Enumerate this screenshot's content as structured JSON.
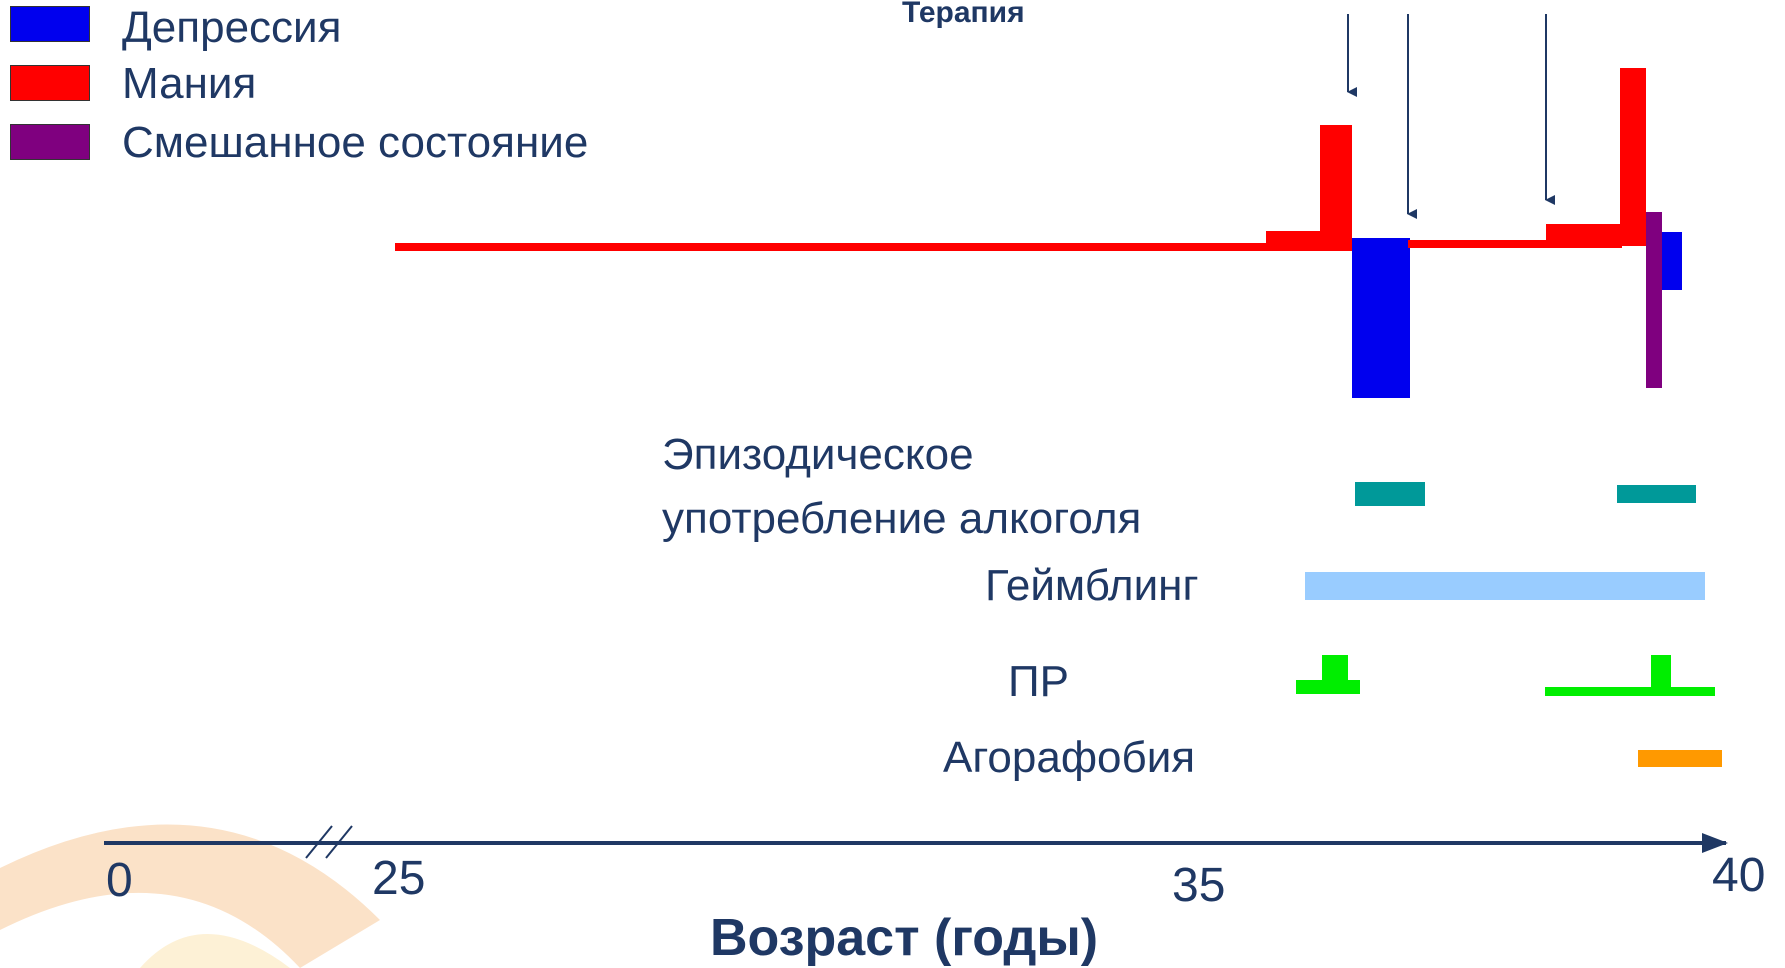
{
  "colors": {
    "depression": "#0000ee",
    "mania": "#ff0000",
    "mixed": "#7f007f",
    "alcohol": "#009999",
    "gambling": "#99ccff",
    "panic": "#00ee00",
    "agoraphobia": "#ff9900",
    "axis": "#1f3864",
    "decor_outer": "#fbe2c8",
    "decor_inner": "#fdf1d6"
  },
  "legend": [
    {
      "label": "Депрессия",
      "color_key": "depression"
    },
    {
      "label": "Мания",
      "color_key": "mania"
    },
    {
      "label": "Смешанное состояние",
      "color_key": "mixed"
    }
  ],
  "therapy_label": "Терапия",
  "rows": {
    "alcohol": "Эпизодическое\nупотребление алкоголя",
    "gambling": "Геймблинг",
    "panic": "ПР",
    "agoraphobia": "Агорафобия"
  },
  "axis": {
    "ticks": [
      "0",
      "25",
      "35",
      "40"
    ],
    "title": "Возраст (годы)"
  }
}
